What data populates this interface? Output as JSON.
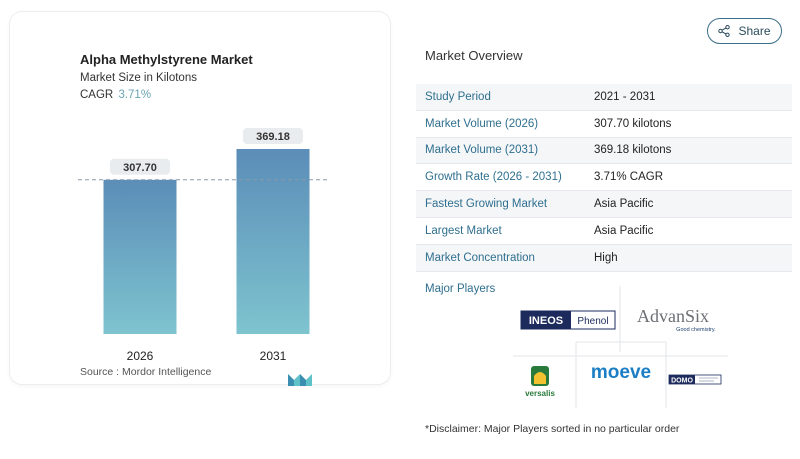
{
  "chart": {
    "title": "Alpha Methylstyrene Market",
    "subtitle": "Market Size in Kilotons",
    "cagr_label": "CAGR",
    "cagr_value": "3.71%",
    "source": "Source :  Mordor Intelligence"
  },
  "chart_data": {
    "type": "bar",
    "title": "Alpha Methylstyrene Market",
    "categories": [
      "2026",
      "2031"
    ],
    "values": [
      307.7,
      369.18
    ],
    "data_labels": [
      "307.70",
      "369.18"
    ],
    "xlabel": "",
    "ylabel": "",
    "ylim": [
      0,
      369.18
    ],
    "grid": false,
    "reference_line": "dashed at 2026 value",
    "colors": {
      "bar_top": "#5b8db8",
      "bar_bottom": "#7ec4cf"
    }
  },
  "share": {
    "label": "Share",
    "icon": "share-icon"
  },
  "overview": {
    "title": "Market Overview",
    "rows": [
      {
        "label": "Study Period",
        "value": "2021 - 2031"
      },
      {
        "label": "Market Volume (2026)",
        "value": "307.70 kilotons"
      },
      {
        "label": "Market Volume (2031)",
        "value": "369.18 kilotons"
      },
      {
        "label": "Growth Rate (2026 - 2031)",
        "value": "3.71% CAGR"
      },
      {
        "label": "Fastest Growing Market",
        "value": "Asia Pacific"
      },
      {
        "label": "Largest Market",
        "value": "Asia Pacific"
      },
      {
        "label": "Market Concentration",
        "value": "High"
      }
    ]
  },
  "players": {
    "title": "Major Players",
    "logos": [
      {
        "name": "ineos-phenol-logo",
        "text_a": "INEOS",
        "text_b": "Phenol"
      },
      {
        "name": "advansix-logo",
        "text_a": "AdvanSix",
        "text_b": "Good chemistry."
      },
      {
        "name": "versalis-logo",
        "text_a": "versalis"
      },
      {
        "name": "moeve-logo",
        "text_a": "moeve"
      },
      {
        "name": "domo-logo",
        "text_a": "DOMO"
      }
    ]
  },
  "disclaimer": "*Disclaimer: Major Players sorted in no particular order",
  "colors": {
    "accent": "#2f6f8f",
    "bar_top": "#5b8db8",
    "bar_bottom": "#7ec4cf"
  }
}
